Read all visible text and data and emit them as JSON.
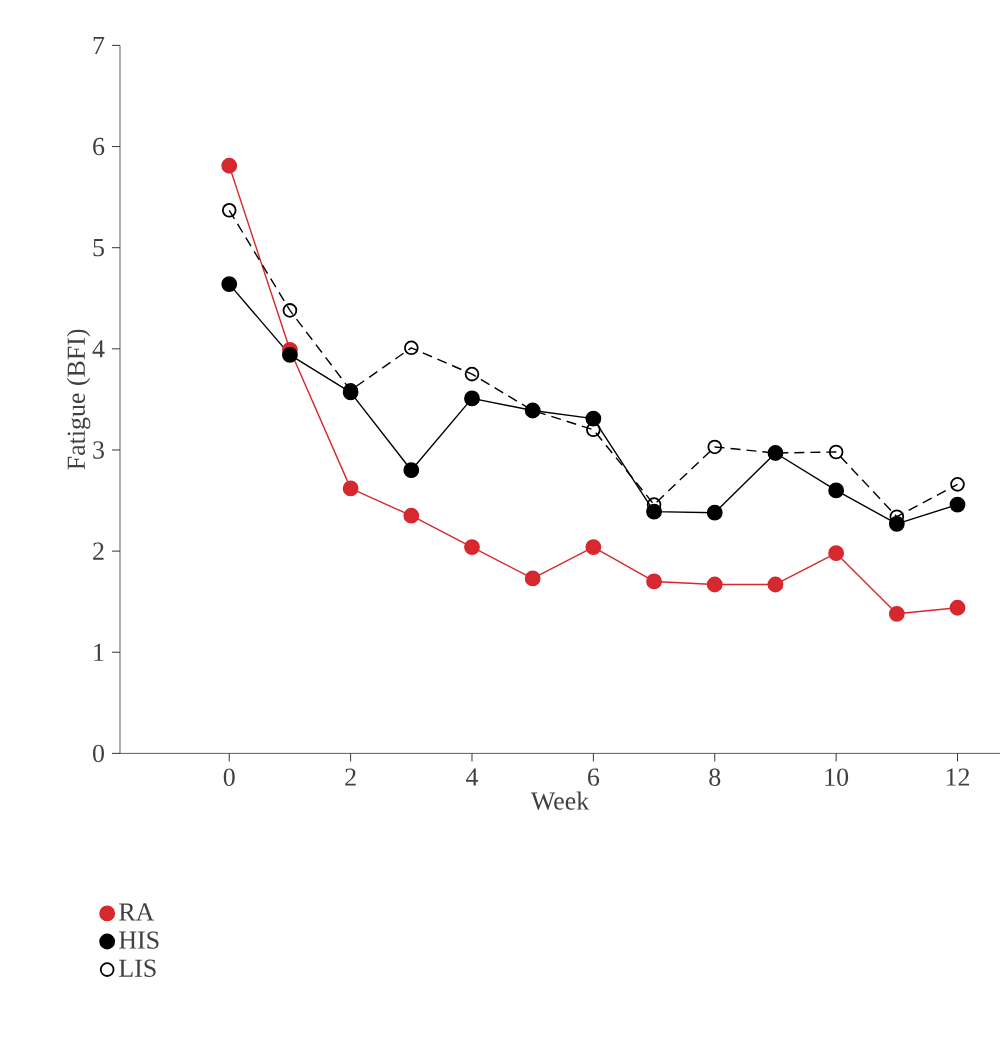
{
  "chart_data": {
    "type": "line",
    "xlabel": "Week",
    "ylabel": "Fatigue (BFI)",
    "x": [
      0,
      1,
      2,
      3,
      4,
      5,
      6,
      7,
      8,
      9,
      10,
      11,
      12
    ],
    "xlim": [
      -1.8,
      12.7
    ],
    "ylim": [
      0,
      7
    ],
    "xticks": [
      0,
      2,
      4,
      6,
      8,
      10,
      12
    ],
    "yticks": [
      0,
      1,
      2,
      3,
      4,
      5,
      6,
      7
    ],
    "marker": "circle",
    "legend": "bottom left",
    "grid": false,
    "series": [
      {
        "name": "RA",
        "color": "#d7282f",
        "line_style": "solid",
        "values": [
          5.81,
          3.99,
          2.62,
          2.35,
          2.04,
          1.73,
          2.04,
          1.7,
          1.67,
          1.67,
          1.98,
          1.38,
          1.44
        ]
      },
      {
        "name": "HIS",
        "color": "#000000",
        "line_style": "solid",
        "values": [
          4.64,
          3.94,
          3.57,
          2.8,
          3.51,
          3.39,
          3.31,
          2.39,
          2.38,
          2.97,
          2.6,
          2.27,
          2.46
        ]
      },
      {
        "name": "LIS",
        "color": "#000000",
        "line_style": "dashed",
        "values": [
          5.37,
          4.38,
          3.59,
          4.01,
          3.75,
          3.39,
          3.2,
          2.46,
          3.03,
          2.97,
          2.98,
          2.34,
          2.66
        ]
      }
    ]
  }
}
